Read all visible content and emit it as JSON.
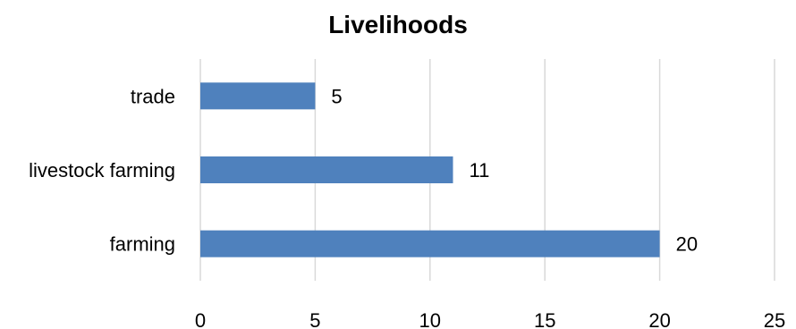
{
  "chart_data": {
    "type": "bar",
    "orientation": "horizontal",
    "title": "Livelihoods",
    "categories": [
      "trade",
      "livestock farming",
      "farming"
    ],
    "values": [
      5,
      11,
      20
    ],
    "xlim": [
      0,
      25
    ],
    "xticks": [
      0,
      5,
      10,
      15,
      20,
      25
    ],
    "grid": true,
    "data_labels": true,
    "legend": "none",
    "bar_color": "#4f81bd",
    "grid_color": "#d9d9d9"
  }
}
